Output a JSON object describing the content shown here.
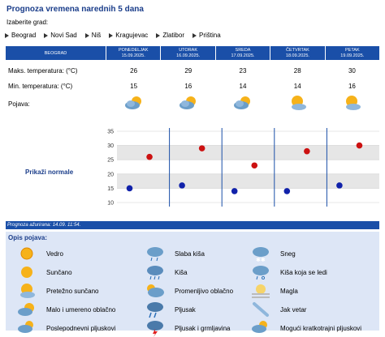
{
  "title": "Prognoza vremena narednih 5 dana",
  "izaberite": "Izaberite grad:",
  "cities": [
    "Beograd",
    "Novi Sad",
    "Niš",
    "Kragujevac",
    "Zlatibor",
    "Priština"
  ],
  "table": {
    "header_label": "BEOGRAD",
    "days": [
      {
        "name": "PONEDELJAK",
        "date": "15.09.2025."
      },
      {
        "name": "UTORAK",
        "date": "16.09.2025."
      },
      {
        "name": "SREDA",
        "date": "17.09.2025."
      },
      {
        "name": "ČETVRTAK",
        "date": "18.09.2025."
      },
      {
        "name": "PETAK",
        "date": "19.09.2025."
      }
    ],
    "max_label": "Maks. temperatura: (°C)",
    "min_label": "Min. temperatura: (°C)",
    "pojava_label": "Pojava:",
    "max": [
      "26",
      "29",
      "23",
      "28",
      "30"
    ],
    "min": [
      "15",
      "16",
      "14",
      "14",
      "16"
    ],
    "icons": [
      "malo-oblacno-icon",
      "malo-oblacno-icon",
      "malo-oblacno-icon",
      "pretezno-suncano-icon",
      "pretezno-suncano-icon"
    ]
  },
  "prikazi": "Prikaži normale",
  "chart_data": {
    "type": "scatter",
    "categories": [
      "PONEDELJAK",
      "UTORAK",
      "SREDA",
      "ČETVRTAK",
      "PETAK"
    ],
    "series": [
      {
        "values": [
          26,
          29,
          23,
          28,
          30
        ],
        "color": "#cc1111"
      },
      {
        "values": [
          15,
          16,
          14,
          14,
          16
        ],
        "color": "#1122aa"
      }
    ],
    "yticks": [
      "10",
      "15",
      "20",
      "25",
      "30",
      "35"
    ],
    "ylim": [
      10,
      35
    ],
    "grid": true
  },
  "azurirana": "Prognoza ažurirana:  14.09.  11:54.",
  "opis_title": "Opis pojava:",
  "legend": [
    {
      "label": "Vedro",
      "icon": "vedro-icon"
    },
    {
      "label": "Sunčano",
      "icon": "suncano-icon"
    },
    {
      "label": "Pretežno sunčano",
      "icon": "pretezno-suncano-icon"
    },
    {
      "label": "Malo i umereno oblačno",
      "icon": "malo-oblacno-icon"
    },
    {
      "label": "Poslepodnevni pljuskovi",
      "icon": "poslepodnevni-pljuskovi-icon"
    },
    {
      "label": "Slaba kiša",
      "icon": "slaba-kisa-icon"
    },
    {
      "label": "Kiša",
      "icon": "kisa-icon"
    },
    {
      "label": "Promenljivo oblačno",
      "icon": "promenljivo-oblacno-icon"
    },
    {
      "label": "Pljusak",
      "icon": "pljusak-icon"
    },
    {
      "label": "Pljusak i grmljavina",
      "icon": "pljusak-grmljavina-icon"
    },
    {
      "label": "Sneg",
      "icon": "sneg-icon"
    },
    {
      "label": "Kiša koja se ledi",
      "icon": "kisa-ledi-icon"
    },
    {
      "label": "Magla",
      "icon": "magla-icon"
    },
    {
      "label": "Jak vetar",
      "icon": "jak-vetar-icon"
    },
    {
      "label": "Mogući kratkotrajni pljuskovi",
      "icon": "kratkotrajni-pljuskovi-icon"
    }
  ]
}
